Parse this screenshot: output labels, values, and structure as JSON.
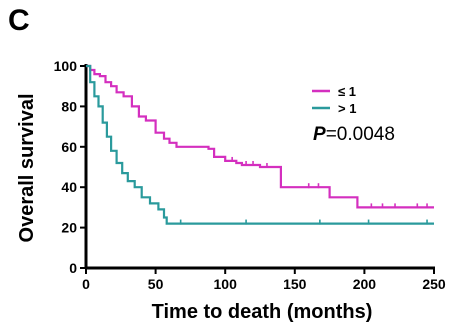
{
  "panel_label": "C",
  "chart_data": {
    "type": "line",
    "title": "",
    "xlabel": "Time to death (months)",
    "ylabel": "Overall survival",
    "xlim": [
      0,
      250
    ],
    "ylim": [
      0,
      100
    ],
    "x_ticks": [
      "0",
      "50",
      "100",
      "150",
      "200",
      "250"
    ],
    "y_ticks": [
      "0",
      "20",
      "40",
      "60",
      "80",
      "100"
    ],
    "legend_position": "top-right",
    "annotation": {
      "p_prefix": "P",
      "p_value": "=0.0048"
    },
    "series": [
      {
        "name": "≤ 1",
        "color": "#d42fbf",
        "points": [
          [
            0,
            100
          ],
          [
            3,
            98
          ],
          [
            6,
            96
          ],
          [
            10,
            95
          ],
          [
            14,
            92
          ],
          [
            18,
            90
          ],
          [
            22,
            87
          ],
          [
            27,
            85
          ],
          [
            33,
            80
          ],
          [
            38,
            75
          ],
          [
            43,
            73
          ],
          [
            50,
            67
          ],
          [
            56,
            64
          ],
          [
            60,
            62
          ],
          [
            65,
            60
          ],
          [
            82,
            60
          ],
          [
            88,
            59
          ],
          [
            92,
            55
          ],
          [
            100,
            53
          ],
          [
            108,
            52
          ],
          [
            112,
            51
          ],
          [
            125,
            50
          ],
          [
            138,
            50
          ],
          [
            140,
            40
          ],
          [
            170,
            40
          ],
          [
            175,
            35
          ],
          [
            188,
            35
          ],
          [
            195,
            30
          ],
          [
            250,
            30
          ]
        ],
        "censor_x": [
          105,
          115,
          120,
          130,
          160,
          167,
          205,
          213,
          222,
          238,
          245
        ]
      },
      {
        "name": "> 1",
        "color": "#2a9a9c",
        "points": [
          [
            0,
            100
          ],
          [
            3,
            92
          ],
          [
            6,
            85
          ],
          [
            9,
            80
          ],
          [
            12,
            72
          ],
          [
            15,
            65
          ],
          [
            18,
            58
          ],
          [
            22,
            52
          ],
          [
            26,
            47
          ],
          [
            30,
            43
          ],
          [
            35,
            40
          ],
          [
            40,
            35
          ],
          [
            46,
            32
          ],
          [
            52,
            29
          ],
          [
            56,
            25
          ],
          [
            58,
            22
          ],
          [
            250,
            22
          ]
        ],
        "censor_x": [
          68,
          115,
          168,
          203,
          245
        ]
      }
    ]
  }
}
